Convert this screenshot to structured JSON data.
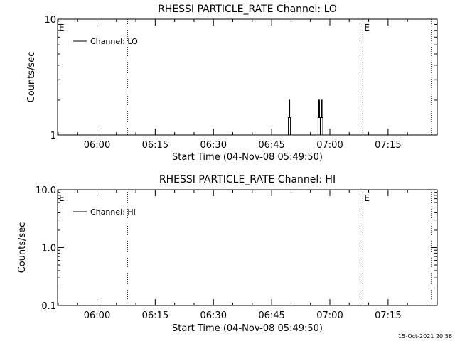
{
  "footer": {
    "timestamp": "15-Oct-2021 20:56"
  },
  "chart_data": [
    {
      "type": "line",
      "title": "RHESSI PARTICLE_RATE Channel: LO",
      "xlabel": "Start Time (04-Nov-08 05:49:50)",
      "ylabel": "Counts/sec",
      "yscale": "log",
      "ylim": [
        1,
        10
      ],
      "xlim": [
        "05:49:50",
        "07:27:40"
      ],
      "xticks": [
        "06:00",
        "06:15",
        "06:30",
        "06:45",
        "07:00",
        "07:15"
      ],
      "yticks": [
        "1",
        "10"
      ],
      "legend": {
        "placement": "top-left",
        "entries": [
          "Channel: LO"
        ]
      },
      "vlines_dotted": [
        "06:07:50",
        "07:08:30",
        "07:26:10"
      ],
      "event_markers": [
        {
          "time": "05:49:50",
          "label": "E"
        },
        {
          "time": "07:08:30",
          "label": "E"
        }
      ],
      "series": [
        {
          "name": "Channel: LO",
          "spikes": [
            {
              "x": "06:49:40",
              "y": 2
            },
            {
              "x": "06:57:20",
              "y": 2
            },
            {
              "x": "06:58:00",
              "y": 2
            }
          ]
        }
      ]
    },
    {
      "type": "line",
      "title": "RHESSI PARTICLE_RATE Channel: HI",
      "xlabel": "Start Time (04-Nov-08 05:49:50)",
      "ylabel": "Counts/sec",
      "yscale": "log",
      "ylim": [
        0.1,
        10
      ],
      "xlim": [
        "05:49:50",
        "07:27:40"
      ],
      "xticks": [
        "06:00",
        "06:15",
        "06:30",
        "06:45",
        "07:00",
        "07:15"
      ],
      "yticks": [
        "0.1",
        "1.0",
        "10.0"
      ],
      "legend": {
        "placement": "top-left",
        "entries": [
          "Channel: HI"
        ]
      },
      "vlines_dotted": [
        "06:07:50",
        "07:08:30",
        "07:26:10"
      ],
      "event_markers": [
        {
          "time": "05:49:50",
          "label": "E"
        },
        {
          "time": "07:08:30",
          "label": "E"
        }
      ],
      "series": [
        {
          "name": "Channel: HI",
          "spikes": []
        }
      ]
    }
  ]
}
